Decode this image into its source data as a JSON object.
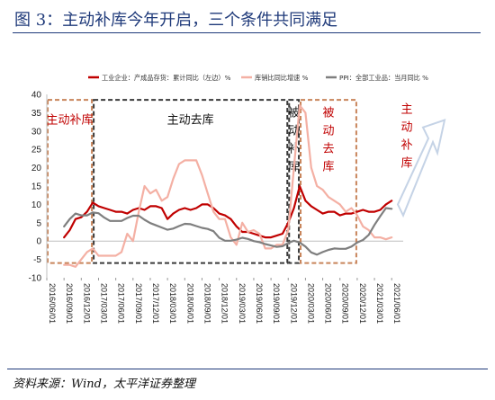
{
  "title": "图 3：主动补库今年开启，三个条件共同满足",
  "source": "资料来源：Wind，太平洋证券整理",
  "chart_data": {
    "type": "line",
    "ylim": [
      -10,
      40
    ],
    "y_ticks": [
      -10,
      -5,
      0,
      5,
      10,
      15,
      20,
      25,
      30,
      35,
      40
    ],
    "x_ticks": [
      "2016/06/01",
      "2016/09/01",
      "2016/12/01",
      "2017/03/01",
      "2017/06/01",
      "2017/09/01",
      "2017/12/01",
      "2018/03/01",
      "2018/06/01",
      "2018/09/01",
      "2018/12/01",
      "2019/03/01",
      "2019/06/01",
      "2019/09/01",
      "2019/12/01",
      "2020/03/01",
      "2020/06/01",
      "2020/09/01",
      "2020/12/01",
      "2021/03/01",
      "2021/06/01"
    ],
    "x_range": [
      "2016-06",
      "2021-08"
    ],
    "legend_position": "top",
    "series": [
      {
        "name": "工业企业：产成品存货：累计同比（左边）%",
        "color": "#c00000",
        "points": [
          [
            "2016-09",
            1
          ],
          [
            "2016-10",
            3
          ],
          [
            "2016-11",
            6
          ],
          [
            "2016-12",
            6.5
          ],
          [
            "2017-01",
            8
          ],
          [
            "2017-02",
            10.5
          ],
          [
            "2017-03",
            9.5
          ],
          [
            "2017-04",
            9
          ],
          [
            "2017-05",
            8.5
          ],
          [
            "2017-06",
            8
          ],
          [
            "2017-07",
            8
          ],
          [
            "2017-08",
            7.5
          ],
          [
            "2017-09",
            8.5
          ],
          [
            "2017-10",
            9
          ],
          [
            "2017-11",
            8.5
          ],
          [
            "2017-12",
            9.5
          ],
          [
            "2018-01",
            9.5
          ],
          [
            "2018-02",
            9
          ],
          [
            "2018-03",
            6
          ],
          [
            "2018-04",
            7.5
          ],
          [
            "2018-05",
            8.5
          ],
          [
            "2018-06",
            9
          ],
          [
            "2018-07",
            8.5
          ],
          [
            "2018-08",
            9
          ],
          [
            "2018-09",
            10
          ],
          [
            "2018-10",
            10
          ],
          [
            "2018-11",
            9
          ],
          [
            "2018-12",
            7.5
          ],
          [
            "2019-01",
            7
          ],
          [
            "2019-02",
            6
          ],
          [
            "2019-03",
            4
          ],
          [
            "2019-04",
            2.5
          ],
          [
            "2019-05",
            2.5
          ],
          [
            "2019-06",
            2
          ],
          [
            "2019-07",
            1.5
          ],
          [
            "2019-08",
            1
          ],
          [
            "2019-09",
            1
          ],
          [
            "2019-10",
            1.5
          ],
          [
            "2019-11",
            2
          ],
          [
            "2019-12",
            5
          ],
          [
            "2020-01",
            9
          ],
          [
            "2020-02",
            15
          ],
          [
            "2020-03",
            11
          ],
          [
            "2020-04",
            9.5
          ],
          [
            "2020-05",
            8.5
          ],
          [
            "2020-06",
            7.5
          ],
          [
            "2020-07",
            8
          ],
          [
            "2020-08",
            8
          ],
          [
            "2020-09",
            7
          ],
          [
            "2020-10",
            7.5
          ],
          [
            "2020-11",
            7.5
          ],
          [
            "2020-12",
            8
          ],
          [
            "2021-01",
            8.5
          ],
          [
            "2021-02",
            8
          ],
          [
            "2021-03",
            8
          ],
          [
            "2021-04",
            8.5
          ],
          [
            "2021-05",
            10
          ],
          [
            "2021-06",
            11
          ]
        ]
      },
      {
        "name": "库销比同比增速 %",
        "color": "#f4b0a4",
        "points": [
          [
            "2016-09",
            -6.5
          ],
          [
            "2016-10",
            -6.5
          ],
          [
            "2016-11",
            -7
          ],
          [
            "2016-12",
            -5
          ],
          [
            "2017-01",
            -3
          ],
          [
            "2017-02",
            -2
          ],
          [
            "2017-03",
            -4
          ],
          [
            "2017-04",
            -4
          ],
          [
            "2017-05",
            -4
          ],
          [
            "2017-06",
            -4
          ],
          [
            "2017-07",
            -3
          ],
          [
            "2017-08",
            2
          ],
          [
            "2017-09",
            0
          ],
          [
            "2017-10",
            8
          ],
          [
            "2017-11",
            15
          ],
          [
            "2017-12",
            13
          ],
          [
            "2018-01",
            14
          ],
          [
            "2018-02",
            11
          ],
          [
            "2018-03",
            12
          ],
          [
            "2018-04",
            17
          ],
          [
            "2018-05",
            21
          ],
          [
            "2018-06",
            22
          ],
          [
            "2018-07",
            22
          ],
          [
            "2018-08",
            22
          ],
          [
            "2018-09",
            18
          ],
          [
            "2018-10",
            13
          ],
          [
            "2018-11",
            8
          ],
          [
            "2018-12",
            6
          ],
          [
            "2019-01",
            6
          ],
          [
            "2019-02",
            1
          ],
          [
            "2019-03",
            -1
          ],
          [
            "2019-04",
            5
          ],
          [
            "2019-05",
            2.5
          ],
          [
            "2019-06",
            3
          ],
          [
            "2019-07",
            2
          ],
          [
            "2019-08",
            -2
          ],
          [
            "2019-09",
            -2
          ],
          [
            "2019-10",
            -1
          ],
          [
            "2019-11",
            -1
          ],
          [
            "2019-12",
            3
          ],
          [
            "2020-01",
            20
          ],
          [
            "2020-02",
            37
          ],
          [
            "2020-03",
            35
          ],
          [
            "2020-04",
            20
          ],
          [
            "2020-05",
            15
          ],
          [
            "2020-06",
            14
          ],
          [
            "2020-07",
            12
          ],
          [
            "2020-08",
            11
          ],
          [
            "2020-09",
            10
          ],
          [
            "2020-10",
            8
          ],
          [
            "2020-11",
            9
          ],
          [
            "2020-12",
            7
          ],
          [
            "2021-01",
            4
          ],
          [
            "2021-02",
            3
          ],
          [
            "2021-03",
            1
          ],
          [
            "2021-04",
            1
          ],
          [
            "2021-05",
            0.5
          ],
          [
            "2021-06",
            1
          ]
        ]
      },
      {
        "name": "PPI：全部工业品：当月同比 %",
        "color": "#7f7f7f",
        "points": [
          [
            "2016-09",
            4
          ],
          [
            "2016-10",
            6
          ],
          [
            "2016-11",
            7.5
          ],
          [
            "2016-12",
            7
          ],
          [
            "2017-01",
            7
          ],
          [
            "2017-02",
            7.8
          ],
          [
            "2017-03",
            7.6
          ],
          [
            "2017-04",
            6.4
          ],
          [
            "2017-05",
            5.5
          ],
          [
            "2017-06",
            5.5
          ],
          [
            "2017-07",
            5.5
          ],
          [
            "2017-08",
            6.3
          ],
          [
            "2017-09",
            6.9
          ],
          [
            "2017-10",
            6.9
          ],
          [
            "2017-11",
            5.8
          ],
          [
            "2017-12",
            4.9
          ],
          [
            "2018-01",
            4.3
          ],
          [
            "2018-02",
            3.7
          ],
          [
            "2018-03",
            3.1
          ],
          [
            "2018-04",
            3.4
          ],
          [
            "2018-05",
            4.1
          ],
          [
            "2018-06",
            4.7
          ],
          [
            "2018-07",
            4.6
          ],
          [
            "2018-08",
            4.1
          ],
          [
            "2018-09",
            3.6
          ],
          [
            "2018-10",
            3.3
          ],
          [
            "2018-11",
            2.7
          ],
          [
            "2018-12",
            0.9
          ],
          [
            "2019-01",
            0.1
          ],
          [
            "2019-02",
            0.1
          ],
          [
            "2019-03",
            0.4
          ],
          [
            "2019-04",
            0.9
          ],
          [
            "2019-05",
            0.6
          ],
          [
            "2019-06",
            0
          ],
          [
            "2019-07",
            -0.3
          ],
          [
            "2019-08",
            -0.8
          ],
          [
            "2019-09",
            -1.2
          ],
          [
            "2019-10",
            -1.6
          ],
          [
            "2019-11",
            -1.4
          ],
          [
            "2019-12",
            -0.5
          ],
          [
            "2020-01",
            0.1
          ],
          [
            "2020-02",
            -0.4
          ],
          [
            "2020-03",
            -1.5
          ],
          [
            "2020-04",
            -3.1
          ],
          [
            "2020-05",
            -3.7
          ],
          [
            "2020-06",
            -3
          ],
          [
            "2020-07",
            -2.4
          ],
          [
            "2020-08",
            -2
          ],
          [
            "2020-09",
            -2.1
          ],
          [
            "2020-10",
            -2.1
          ],
          [
            "2020-11",
            -1.5
          ],
          [
            "2020-12",
            -0.4
          ],
          [
            "2021-01",
            0.3
          ],
          [
            "2021-02",
            1.7
          ],
          [
            "2021-03",
            4.4
          ],
          [
            "2021-04",
            6.8
          ],
          [
            "2021-05",
            9
          ],
          [
            "2021-06",
            8.8
          ]
        ]
      }
    ],
    "phases": [
      {
        "label": "主动补库",
        "start": "2016-06",
        "end": "2017-02",
        "style": "dashed-brown"
      },
      {
        "label": "主动去库",
        "start": "2017-02",
        "end": "2019-12",
        "style": "dashed-dark"
      },
      {
        "label": "被动补库",
        "start": "2019-12",
        "end": "2020-02",
        "style": "dashed-dark"
      },
      {
        "label": "被动去库",
        "start": "2020-02",
        "end": "2020-12",
        "style": "dashed-brown"
      },
      {
        "label": "主动补库",
        "start": "2020-12",
        "end": "2021-08",
        "style": "arrow"
      }
    ]
  }
}
